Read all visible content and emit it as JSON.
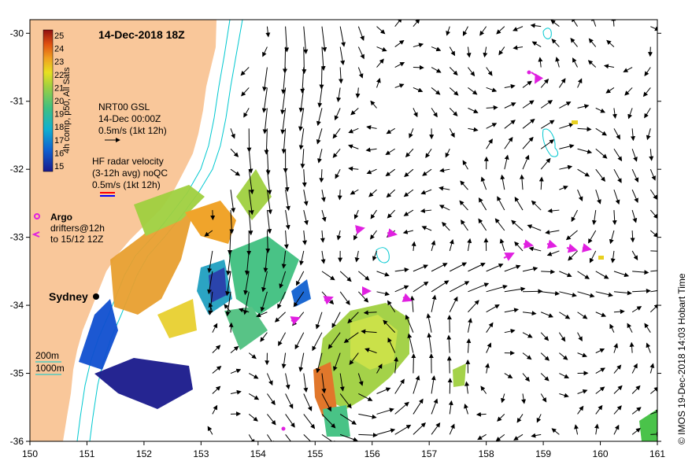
{
  "map": {
    "title": "14-Dec-2018 18Z",
    "credit": "© IMOS 19-Dec-2018 14:03 Hobart Time",
    "lon_range": [
      150,
      161
    ],
    "lat_range": [
      -36,
      -29.8
    ],
    "lon_ticks": [
      "150",
      "151",
      "152",
      "153",
      "154",
      "155",
      "156",
      "157",
      "158",
      "159",
      "160",
      "161"
    ],
    "lat_ticks": [
      "-30",
      "-31",
      "-32",
      "-33",
      "-34",
      "-35",
      "-36"
    ],
    "colors": {
      "land": "#f9c79a",
      "isobath": "#00c8d0",
      "argo": "#e020e0",
      "gsl_arrow": "#000000",
      "hf_arrow_a": "#ff0000",
      "hf_arrow_b": "#0000ff"
    },
    "colorbar": {
      "label": "4h comp, p50, All Sats",
      "ticks": [
        "25",
        "24",
        "23",
        "22",
        "21",
        "20",
        "19",
        "18",
        "17",
        "16",
        "15"
      ]
    },
    "legend": {
      "gsl": {
        "line1": "NRT00 GSL",
        "line2": "14-Dec 00:00Z",
        "line3": "0.5m/s (1kt 12h)"
      },
      "hf": {
        "line1": "HF radar velocity",
        "line2": "(3-12h avg) noQC",
        "line3": "0.5m/s (1kt 12h)"
      },
      "argo": {
        "label": "Argo"
      },
      "drifters": {
        "line1": "drifters@12h",
        "line2": "to 15/12 12Z"
      },
      "depth": {
        "line1": "200m",
        "line2": "1000m"
      }
    },
    "place": {
      "name": "Sydney",
      "lon": 151.2,
      "lat": -33.87
    }
  }
}
